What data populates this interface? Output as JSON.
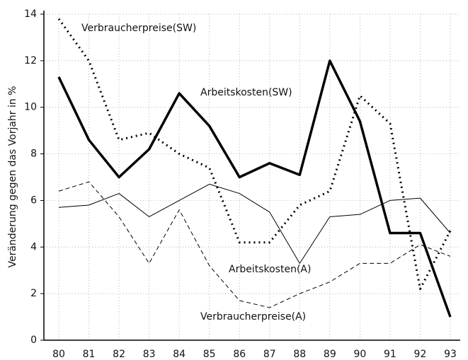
{
  "chart_data": {
    "type": "line",
    "ylabel": "Veränderung gegen das Vorjahr in %",
    "categories": [
      "80",
      "81",
      "82",
      "83",
      "84",
      "85",
      "86",
      "87",
      "88",
      "89",
      "90",
      "91",
      "92",
      "93"
    ],
    "ylim": [
      0,
      14
    ],
    "yticks": [
      0,
      2,
      4,
      6,
      8,
      10,
      12,
      14
    ],
    "grid": true,
    "series": [
      {
        "name": "Arbeitskosten(SW)",
        "color": "#000",
        "style": "solid",
        "width": 3.5,
        "values": [
          11.3,
          8.6,
          7.0,
          8.2,
          10.6,
          9.2,
          7.0,
          7.6,
          7.1,
          12.0,
          9.4,
          4.6,
          4.6,
          1.0
        ]
      },
      {
        "name": "Verbraucherpreise(SW)",
        "color": "#000",
        "style": "dotted",
        "width": 3,
        "values": [
          13.8,
          12.0,
          8.6,
          8.9,
          8.0,
          7.4,
          4.2,
          4.2,
          5.8,
          6.4,
          10.5,
          9.3,
          2.2,
          4.7
        ]
      },
      {
        "name": "Arbeitskosten(A)",
        "color": "#000",
        "style": "solid",
        "width": 1,
        "values": [
          5.7,
          5.8,
          6.3,
          5.3,
          6.0,
          6.7,
          6.3,
          5.5,
          3.3,
          5.3,
          5.4,
          6.0,
          6.1,
          4.6
        ]
      },
      {
        "name": "Verbraucherpreise(A)",
        "color": "#000",
        "style": "dashed",
        "width": 1,
        "values": [
          6.4,
          6.8,
          5.3,
          3.3,
          5.6,
          3.2,
          1.7,
          1.4,
          2.0,
          2.5,
          3.3,
          3.3,
          4.1,
          3.6
        ]
      }
    ]
  }
}
